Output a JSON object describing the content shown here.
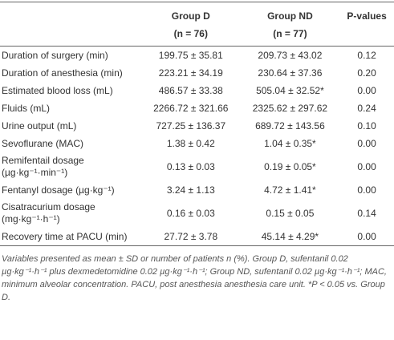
{
  "table": {
    "columns": [
      {
        "title": "Group D",
        "subtitle": "(n = 76)"
      },
      {
        "title": "Group ND",
        "subtitle": "(n = 77)"
      },
      {
        "title": "P-values"
      }
    ],
    "rows": [
      [
        "Duration of surgery (min)",
        "199.75 ± 35.81",
        "209.73 ± 43.02",
        "0.12"
      ],
      [
        "Duration of anesthesia (min)",
        "223.21 ± 34.19",
        "230.64 ± 37.36",
        "0.20"
      ],
      [
        "Estimated blood loss (mL)",
        "486.57 ± 33.38",
        "505.04 ± 32.52*",
        "0.00"
      ],
      [
        "Fluids (mL)",
        "2266.72 ± 321.66",
        "2325.62 ± 297.62",
        "0.24"
      ],
      [
        "Urine output (mL)",
        "727.25 ± 136.37",
        "689.72 ± 143.56",
        "0.10"
      ],
      [
        "Sevoflurane (MAC)",
        "1.38 ± 0.42",
        "1.04 ± 0.35*",
        "0.00"
      ],
      [
        "Remifentail dosage (µg·kg⁻¹·min⁻¹)",
        "0.13 ± 0.03",
        "0.19 ± 0.05*",
        "0.00"
      ],
      [
        "Fentanyl dosage (µg·kg⁻¹)",
        "3.24 ± 1.13",
        "4.72 ± 1.41*",
        "0.00"
      ],
      [
        "Cisatracurium dosage (mg·kg⁻¹·h⁻¹)",
        "0.16 ± 0.03",
        "0.15 ± 0.05",
        "0.14"
      ],
      [
        "Recovery time at PACU (min)",
        "27.72 ± 3.78",
        "45.14 ± 4.29*",
        "0.00"
      ]
    ]
  },
  "footnote": "Variables presented as mean ± SD or number of patients n (%). Group D, sufentanil 0.02 µg·kg⁻¹·h⁻¹ plus dexmedetomidine 0.02 µg·kg⁻¹·h⁻¹; Group ND, sufentanil 0.02 µg·kg⁻¹·h⁻¹; MAC, minimum alveolar concentration. PACU, post anesthesia anesthesia care unit. *P < 0.05 vs. Group D."
}
